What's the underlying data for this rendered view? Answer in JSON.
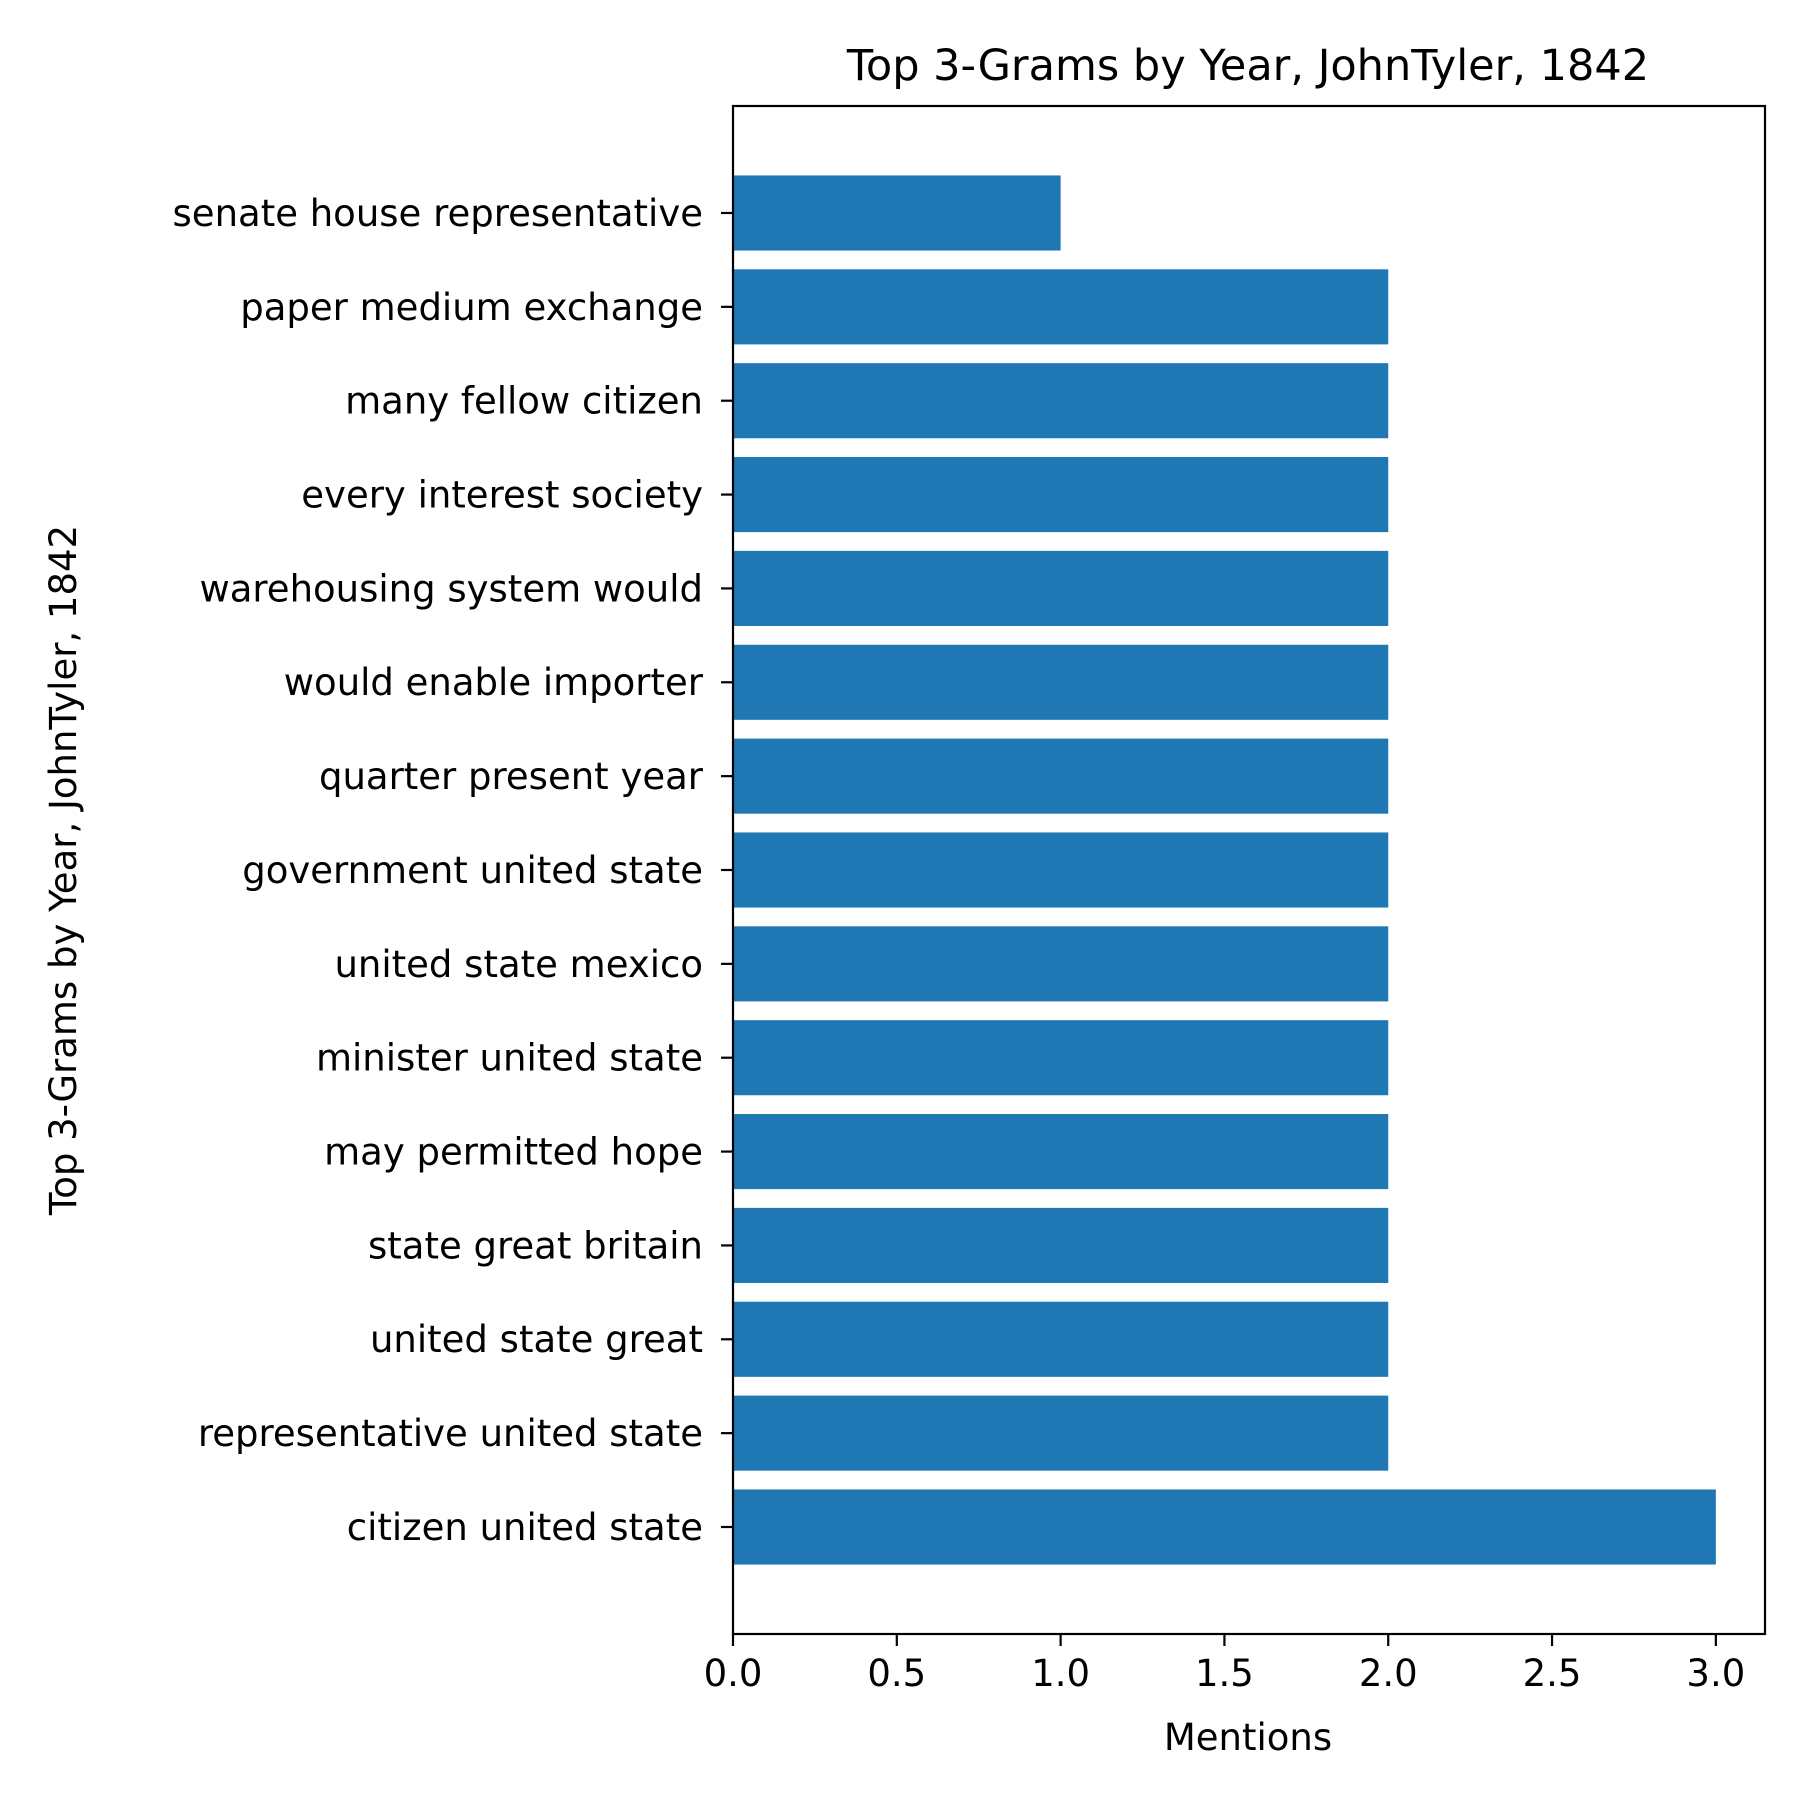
{
  "chart_data": {
    "type": "bar",
    "orientation": "horizontal",
    "title": "Top 3-Grams by Year, JohnTyler, 1842",
    "xlabel": "Mentions",
    "ylabel": "Top 3-Grams by Year, JohnTyler, 1842",
    "categories": [
      "citizen united state",
      "representative united state",
      "united state great",
      "state great britain",
      "may permitted hope",
      "minister united state",
      "united state mexico",
      "government united state",
      "quarter present year",
      "would enable importer",
      "warehousing system would",
      "every interest society",
      "many fellow citizen",
      "paper medium exchange",
      "senate house representative"
    ],
    "values": [
      3,
      2,
      2,
      2,
      2,
      2,
      2,
      2,
      2,
      2,
      2,
      2,
      2,
      2,
      1
    ],
    "xlim": [
      0,
      3.15
    ],
    "xticks": [
      "0.0",
      "0.5",
      "1.0",
      "1.5",
      "2.0",
      "2.5",
      "3.0"
    ],
    "bar_color": "#1f77b4",
    "grid": false,
    "legend": "none"
  }
}
